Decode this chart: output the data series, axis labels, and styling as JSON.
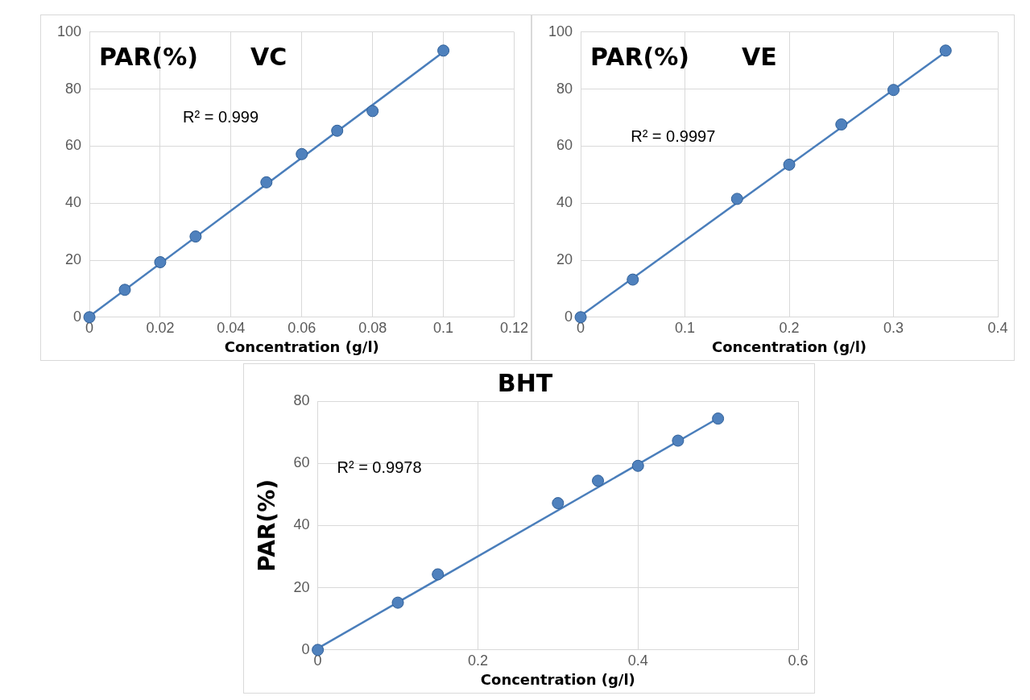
{
  "chart_data": [
    {
      "type": "scatter",
      "title": "VC",
      "ylabel": "PAR(%)",
      "xlabel": "Concentration (g/l)",
      "annotations": [
        "R² = 0.999"
      ],
      "x": [
        0,
        0.01,
        0.02,
        0.03,
        0.05,
        0.06,
        0.07,
        0.08,
        0.1
      ],
      "series": [
        {
          "color": "#4f81bd",
          "marker": "circle",
          "values": [
            0,
            9.6,
            19.3,
            28.3,
            47.3,
            57.2,
            65.4,
            72.3,
            93.5
          ]
        },
        {
          "type": "line",
          "color": "#4a7ebb",
          "marker": "none",
          "line_style": "solid",
          "x": [
            0,
            0.1
          ],
          "values": [
            0.3,
            93
          ]
        }
      ],
      "xlim": [
        0,
        0.12
      ],
      "xticks": [
        0,
        0.02,
        0.04,
        0.06,
        0.08,
        0.1,
        0.12
      ],
      "ylim": [
        0,
        100
      ],
      "yticks": [
        0,
        20,
        40,
        60,
        80,
        100
      ],
      "grid": true
    },
    {
      "type": "scatter",
      "title": "VE",
      "ylabel": "PAR(%)",
      "xlabel": "Concentration (g/l)",
      "annotations": [
        "R² = 0.9997"
      ],
      "x": [
        0,
        0.05,
        0.15,
        0.2,
        0.25,
        0.3,
        0.35
      ],
      "series": [
        {
          "color": "#4f81bd",
          "marker": "circle",
          "values": [
            0,
            13.2,
            41.5,
            53.5,
            67.6,
            79.7,
            93.5
          ]
        },
        {
          "type": "line",
          "color": "#4a7ebb",
          "marker": "none",
          "line_style": "solid",
          "x": [
            0,
            0.35
          ],
          "values": [
            0.5,
            93
          ]
        }
      ],
      "xlim": [
        0,
        0.4
      ],
      "xticks": [
        0,
        0.1,
        0.2,
        0.3,
        0.4
      ],
      "ylim": [
        0,
        100
      ],
      "yticks": [
        0,
        20,
        40,
        60,
        80,
        100
      ],
      "grid": true
    },
    {
      "type": "scatter",
      "title": "BHT",
      "ylabel": "PAR(%)",
      "xlabel": "Concentration (g/l)",
      "annotations": [
        "R² = 0.9978"
      ],
      "x": [
        0,
        0.1,
        0.15,
        0.3,
        0.35,
        0.4,
        0.45,
        0.5
      ],
      "series": [
        {
          "color": "#4f81bd",
          "marker": "circle",
          "values": [
            0,
            15.2,
            24.3,
            47.2,
            54.4,
            59.2,
            67.3,
            74.4
          ]
        },
        {
          "type": "line",
          "color": "#4a7ebb",
          "marker": "none",
          "line_style": "solid",
          "x": [
            0,
            0.5
          ],
          "values": [
            0.5,
            74.5
          ]
        }
      ],
      "xlim": [
        0,
        0.6
      ],
      "xticks": [
        0,
        0.2,
        0.4,
        0.6
      ],
      "ylim": [
        0,
        80
      ],
      "yticks": [
        0,
        20,
        40,
        60,
        80
      ],
      "grid": true
    }
  ]
}
